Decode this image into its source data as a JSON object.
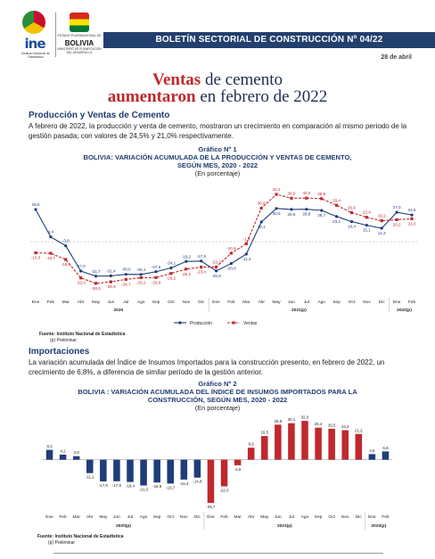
{
  "header": {
    "ine_logo": "ine",
    "ine_sub": "Instituto Nacional de Estadística",
    "gov_text": "ESTADO PLURINACIONAL DE",
    "country": "BOLIVIA",
    "ministry": "MINISTERIO DE PLANIFICACIÓN DEL DESARROLLO",
    "bulletin": "BOLETÍN SECTORIAL DE CONSTRUCCIÓN Nº 04/22",
    "date": "28 de abril"
  },
  "headline": {
    "line1_bold": "Ventas",
    "line1_rest": " de cemento",
    "line2_bold": "aumentaron",
    "line2_rest": " en febrero de 2022"
  },
  "section1": {
    "heading": "Producción y Ventas de Cemento",
    "text": "A febrero de 2022, la producción y venta de cemento, mostraron un crecimiento en comparación al mismo periodo de la gestión pasada; con valores de 24,5% y 21,0% respectivamente."
  },
  "section2": {
    "heading": "Importaciones",
    "text": "La variación acumulada del Índice de Insumos Importados para la construcción presento, en febrero de 2022, un crecimiento de 6,8%, a diferencia de similar período de la gestión anterior."
  },
  "chart_data": [
    {
      "type": "line",
      "label": "Gráfico Nº 1",
      "title": "BOLIVIA: VARIACIÓN ACUMULADA DE LA PRODUCCIÓN Y VENTAS DE CEMENTO, SEGÚN MES, 2020 - 2022",
      "subtitle": "(En porcentaje)",
      "categories": [
        "Ene",
        "Feb",
        "Mar",
        "Abr",
        "May",
        "Jun",
        "Jul",
        "Ago",
        "Sep",
        "Oct",
        "Nov",
        "Dic",
        "Ene",
        "Feb",
        "Mar",
        "Abr",
        "May",
        "Jun",
        "Jul",
        "Ago",
        "Sep",
        "Oct",
        "Nov",
        "Dic",
        "Ene",
        "Feb"
      ],
      "year_labels": [
        "2020",
        "2021(p)",
        "2022(p)"
      ],
      "series": [
        {
          "name": "Producción",
          "color": "#1f3d7a",
          "values": [
            29.5,
            4.4,
            -3.8,
            -27.0,
            -31.7,
            -31.4,
            -30.0,
            -30.1,
            -27.6,
            -24.1,
            -18.2,
            -17.8,
            -26.9,
            -20.0,
            -11.4,
            18.1,
            30.5,
            29.6,
            29.8,
            28.7,
            23.1,
            18.4,
            15.1,
            12.3,
            27.0,
            24.5
          ]
        },
        {
          "name": "Ventas",
          "color": "#c0282d",
          "values": [
            -10.3,
            -10.7,
            -16.4,
            -33.3,
            -38.3,
            -36.9,
            -34.7,
            -33.1,
            -33.0,
            -29.2,
            -25.2,
            -23.4,
            -23.3,
            -10.6,
            -1.9,
            30.8,
            43.4,
            39.9,
            40.0,
            39.5,
            33.4,
            26.6,
            22.4,
            19.2,
            20.2,
            21.0
          ]
        }
      ],
      "labels": {
        "produccion": [
          "29,5",
          "4,4",
          "-3,8",
          "-27,0",
          "-31,7",
          "-31,4",
          "-30,0",
          "-30,1",
          "-27,6",
          "-24,1",
          "-18,2",
          "-17,8",
          "-26,9",
          "-20,0",
          "-11,4",
          "18,1",
          "30,5",
          "29,6",
          "29,8",
          "28,7",
          "23,1",
          "18,4",
          "15,1",
          "12,3",
          "27,0",
          "24,5"
        ],
        "ventas": [
          "-10,3",
          "-10,7",
          "-16,4",
          "-33,3",
          "-38,3",
          "-36,9",
          "-34,7",
          "-33,1",
          "-33,0",
          "-29,2",
          "-25,2",
          "-23,4",
          "-23,3",
          "-10,6",
          "-1,9",
          "30,8",
          "43,4",
          "39,9",
          "40,0",
          "39,5",
          "33,4",
          "26,6",
          "22,4",
          "19,2",
          "20,2",
          "21,0"
        ]
      },
      "ylim": [
        -45,
        50
      ],
      "legend": "bottom",
      "source": "Fuente: Instituto Nacional de Estadística",
      "note": "(p) Preliminar"
    },
    {
      "type": "bar",
      "label": "Gráfico Nº 2",
      "title": "BOLIVIA : VARIACIÓN ACUMULADA DEL ÍNDICE DE INSUMOS IMPORTADOS PARA LA CONSTRUCCIÓN, SEGÚN MES, 2020 - 2022",
      "subtitle": "(En porcentaje)",
      "categories": [
        "Ene",
        "Feb",
        "Mar",
        "Abr",
        "May",
        "Jun",
        "Jul",
        "Ago",
        "Sep",
        "Oct",
        "Nov",
        "Dic",
        "Ene",
        "Feb",
        "Mar",
        "Abr",
        "May",
        "Jun",
        "Jul",
        "Ago",
        "Sep",
        "Oct",
        "Nov",
        "Dic",
        "Ene",
        "Feb"
      ],
      "year_labels": [
        "2020(p)",
        "2021(p)",
        "2022(p)"
      ],
      "values": [
        8.1,
        4.2,
        2.9,
        -11.1,
        -17.9,
        -17.8,
        -18.4,
        -21.3,
        -18.8,
        -19.7,
        -16.4,
        -14.8,
        -35.7,
        -22.0,
        -4.6,
        9.9,
        19.5,
        28.9,
        30.1,
        32.0,
        26.4,
        25.5,
        24.3,
        21.2,
        4.6,
        6.8
      ],
      "value_labels": [
        "8,1",
        "4,2",
        "2,9",
        "-11,1",
        "-17,9",
        "-17,8",
        "-18,4",
        "-21,3",
        "-18,8",
        "-19,7",
        "-16,4",
        "-14,8",
        "-35,7",
        "-22,0",
        "-4,6",
        "9,9",
        "19,5",
        "28,9",
        "30,1",
        "32,0",
        "26,4",
        "25,5",
        "24,3",
        "21,2",
        "4,6",
        "6,8"
      ],
      "colors": {
        "2020": "#1f3d7a",
        "2021": "#c0282d",
        "2022": "#1f3d7a"
      },
      "ylim": [
        -40,
        35
      ],
      "source": "Fuente: Instituto Nacional de Estadística",
      "note": "(p) Preliminar"
    }
  ]
}
